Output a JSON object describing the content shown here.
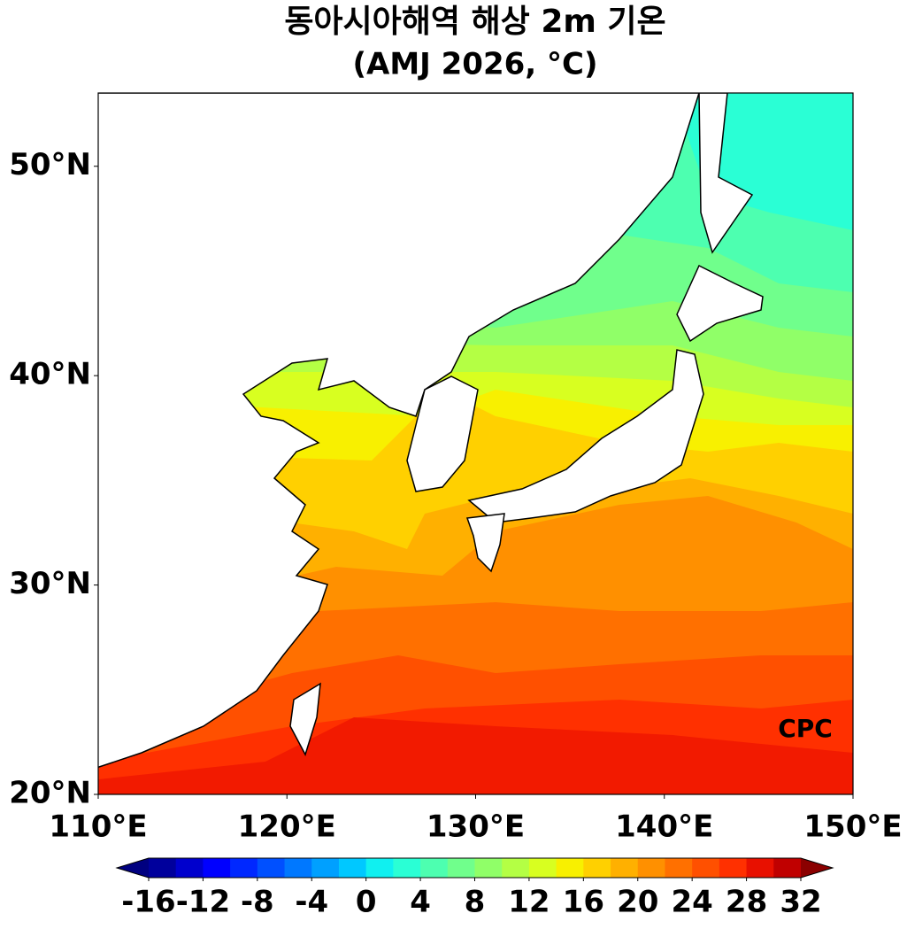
{
  "chart_data": {
    "type": "map",
    "title": "동아시아해역 해상 2m 기온",
    "subtitle": "(AMJ 2026, °C)",
    "xlim": [
      110,
      150
    ],
    "ylim": [
      20,
      53.5
    ],
    "xticks": [
      {
        "value": 110,
        "label": "110°E"
      },
      {
        "value": 120,
        "label": "120°E"
      },
      {
        "value": 130,
        "label": "130°E"
      },
      {
        "value": 140,
        "label": "140°E"
      },
      {
        "value": 150,
        "label": "150°E"
      }
    ],
    "yticks": [
      {
        "value": 20,
        "label": "20°N"
      },
      {
        "value": 30,
        "label": "30°N"
      },
      {
        "value": 40,
        "label": "40°N"
      },
      {
        "value": 50,
        "label": "50°N"
      }
    ],
    "watermark": "CPC",
    "colorbar": {
      "lim": [
        -16,
        32
      ],
      "ticks": [
        -16,
        -12,
        -8,
        -4,
        0,
        4,
        8,
        12,
        16,
        20,
        24,
        28,
        32
      ],
      "colors": [
        "#00009c",
        "#0000cd",
        "#0000ff",
        "#0028ff",
        "#0050ff",
        "#0078ff",
        "#00a0ff",
        "#00c8ff",
        "#10f0f0",
        "#2affd5",
        "#4dffb0",
        "#70ff8c",
        "#90ff68",
        "#b4ff44",
        "#d8ff20",
        "#f8f000",
        "#ffd000",
        "#ffb000",
        "#ff9000",
        "#ff7000",
        "#ff5000",
        "#ff3000",
        "#e81000",
        "#c00000"
      ],
      "extend_colors": [
        "#000080",
        "#8b0000"
      ]
    }
  }
}
